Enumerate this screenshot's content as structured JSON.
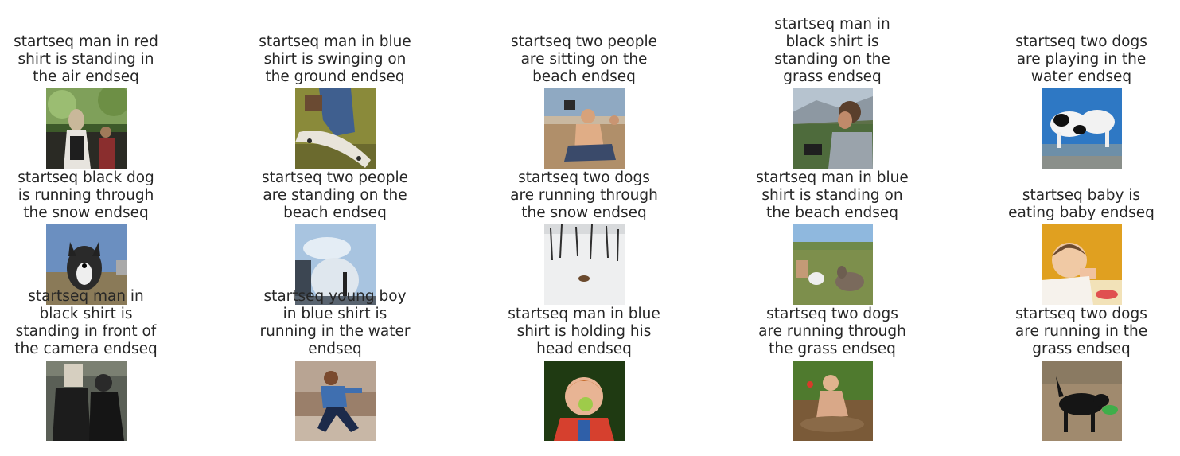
{
  "items": [
    {
      "caption": "startseq man in red\nshirt is standing in\nthe air endseq",
      "scene": "crowd-outdoors-photo"
    },
    {
      "caption": "startseq man in blue\nshirt is swinging on\nthe ground endseq",
      "scene": "skateboard-photo"
    },
    {
      "caption": "startseq two people\nare sitting on the\nbeach endseq",
      "scene": "beach-sitting-photo"
    },
    {
      "caption": "startseq man in\nblack shirt is\nstanding on the\ngrass endseq",
      "scene": "man-with-camera-photo"
    },
    {
      "caption": "startseq two dogs\nare playing in the\nwater endseq",
      "scene": "dogs-in-water-photo"
    },
    {
      "caption": "startseq black dog\nis running through\nthe snow endseq",
      "scene": "running-dog-photo"
    },
    {
      "caption": "startseq two people\nare standing on the\nbeach endseq",
      "scene": "fountain-photo"
    },
    {
      "caption": "startseq two dogs\nare running through\nthe snow endseq",
      "scene": "snow-field-photo"
    },
    {
      "caption": "startseq man in blue\nshirt is standing on\nthe beach endseq",
      "scene": "dogs-on-grass-photo"
    },
    {
      "caption": "startseq baby is\neating baby endseq",
      "scene": "baby-eating-photo"
    },
    {
      "caption": "startseq man in\nblack shirt is\nstanding in front of\nthe camera endseq",
      "scene": "people-in-black-photo"
    },
    {
      "caption": "startseq young boy\nin blue shirt is\nrunning in the water\nendseq",
      "scene": "running-boy-photo"
    },
    {
      "caption": "startseq man in blue\nshirt is holding his\nhead endseq",
      "scene": "child-with-apple-photo"
    },
    {
      "caption": "startseq two dogs\nare running through\nthe grass endseq",
      "scene": "child-in-mud-photo"
    },
    {
      "caption": "startseq two dogs\nare running in the\ngrass endseq",
      "scene": "dog-with-toy-photo"
    }
  ]
}
